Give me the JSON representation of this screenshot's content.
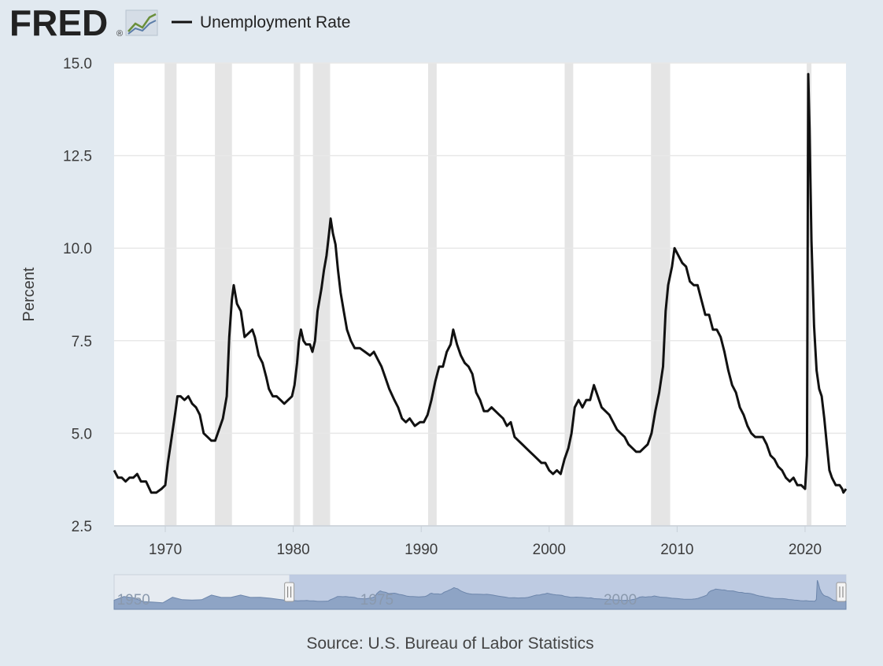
{
  "logo": {
    "text": "FRED",
    "registered": "®",
    "icon": "line-chart-icon"
  },
  "legend": {
    "label": "Unemployment Rate",
    "color": "#111111"
  },
  "source": "Source: U.S. Bureau of Labor Statistics",
  "colors": {
    "background": "#e1e9f0",
    "plot_background": "#ffffff",
    "recession_band": "#e5e5e5",
    "line": "#111111",
    "navigator_fill": "#8ea4c5",
    "navigator_mask": "#b6c6df"
  },
  "navigator": {
    "year_labels": [
      "1950",
      "1975",
      "2000"
    ],
    "year_values": [
      1950,
      1975,
      2000
    ],
    "x_range": [
      1948,
      2023.2
    ],
    "selected_range": [
      1966,
      2023.2
    ],
    "handle_icon": "drag-handle-icon",
    "overview_points": [
      [
        1948,
        4.0
      ],
      [
        1949,
        6.0
      ],
      [
        1950,
        5.3
      ],
      [
        1951,
        3.3
      ],
      [
        1952,
        3.0
      ],
      [
        1953,
        2.6
      ],
      [
        1954,
        5.6
      ],
      [
        1955,
        4.3
      ],
      [
        1956,
        4.1
      ],
      [
        1957,
        4.3
      ],
      [
        1958,
        6.8
      ],
      [
        1959,
        5.5
      ],
      [
        1960,
        5.5
      ],
      [
        1961,
        6.8
      ],
      [
        1962,
        5.5
      ],
      [
        1963,
        5.6
      ],
      [
        1964,
        5.1
      ],
      [
        1965,
        4.4
      ],
      [
        1966,
        3.8
      ]
    ]
  },
  "chart_data": {
    "type": "line",
    "title": "",
    "xlabel": "",
    "ylabel": "Percent",
    "xlim": [
      1966,
      2023.2
    ],
    "ylim": [
      2.5,
      15.0
    ],
    "x_ticks": [
      1970,
      1980,
      1990,
      2000,
      2010,
      2020
    ],
    "y_ticks": [
      2.5,
      5.0,
      7.5,
      10.0,
      12.5,
      15.0
    ],
    "y_tick_labels": [
      "2.5",
      "5.0",
      "7.5",
      "10.0",
      "12.5",
      "15.0"
    ],
    "grid": true,
    "legend_position": "top",
    "recessions": [
      [
        1969.95,
        1970.88
      ],
      [
        1973.88,
        1975.21
      ],
      [
        1980.04,
        1980.54
      ],
      [
        1981.54,
        1982.88
      ],
      [
        1990.54,
        1991.21
      ],
      [
        2001.21,
        2001.88
      ],
      [
        2007.96,
        2009.46
      ],
      [
        2020.13,
        2020.29
      ]
    ],
    "series": [
      {
        "name": "Unemployment Rate",
        "color": "#111111",
        "points": [
          [
            1966.0,
            4.0
          ],
          [
            1966.3,
            3.8
          ],
          [
            1966.6,
            3.8
          ],
          [
            1966.9,
            3.7
          ],
          [
            1967.2,
            3.8
          ],
          [
            1967.5,
            3.8
          ],
          [
            1967.8,
            3.9
          ],
          [
            1968.1,
            3.7
          ],
          [
            1968.5,
            3.7
          ],
          [
            1968.9,
            3.4
          ],
          [
            1969.3,
            3.4
          ],
          [
            1969.7,
            3.5
          ],
          [
            1970.0,
            3.6
          ],
          [
            1970.2,
            4.2
          ],
          [
            1970.5,
            4.9
          ],
          [
            1970.8,
            5.6
          ],
          [
            1970.95,
            6.0
          ],
          [
            1971.2,
            6.0
          ],
          [
            1971.5,
            5.9
          ],
          [
            1971.8,
            6.0
          ],
          [
            1972.1,
            5.8
          ],
          [
            1972.4,
            5.7
          ],
          [
            1972.7,
            5.5
          ],
          [
            1973.0,
            5.0
          ],
          [
            1973.3,
            4.9
          ],
          [
            1973.6,
            4.8
          ],
          [
            1973.9,
            4.8
          ],
          [
            1974.2,
            5.1
          ],
          [
            1974.5,
            5.4
          ],
          [
            1974.8,
            6.0
          ],
          [
            1975.0,
            7.6
          ],
          [
            1975.2,
            8.6
          ],
          [
            1975.35,
            9.0
          ],
          [
            1975.6,
            8.5
          ],
          [
            1975.9,
            8.3
          ],
          [
            1976.2,
            7.6
          ],
          [
            1976.5,
            7.7
          ],
          [
            1976.8,
            7.8
          ],
          [
            1977.0,
            7.6
          ],
          [
            1977.3,
            7.1
          ],
          [
            1977.6,
            6.9
          ],
          [
            1977.9,
            6.5
          ],
          [
            1978.1,
            6.2
          ],
          [
            1978.4,
            6.0
          ],
          [
            1978.7,
            6.0
          ],
          [
            1979.0,
            5.9
          ],
          [
            1979.3,
            5.8
          ],
          [
            1979.6,
            5.9
          ],
          [
            1979.9,
            6.0
          ],
          [
            1980.1,
            6.3
          ],
          [
            1980.3,
            6.9
          ],
          [
            1980.45,
            7.5
          ],
          [
            1980.6,
            7.8
          ],
          [
            1980.8,
            7.5
          ],
          [
            1981.0,
            7.4
          ],
          [
            1981.3,
            7.4
          ],
          [
            1981.5,
            7.2
          ],
          [
            1981.7,
            7.5
          ],
          [
            1981.9,
            8.3
          ],
          [
            1982.2,
            8.9
          ],
          [
            1982.4,
            9.4
          ],
          [
            1982.6,
            9.8
          ],
          [
            1982.8,
            10.4
          ],
          [
            1982.92,
            10.8
          ],
          [
            1983.1,
            10.4
          ],
          [
            1983.3,
            10.1
          ],
          [
            1983.5,
            9.4
          ],
          [
            1983.7,
            8.8
          ],
          [
            1983.95,
            8.3
          ],
          [
            1984.2,
            7.8
          ],
          [
            1984.5,
            7.5
          ],
          [
            1984.8,
            7.3
          ],
          [
            1985.2,
            7.3
          ],
          [
            1985.6,
            7.2
          ],
          [
            1986.0,
            7.1
          ],
          [
            1986.3,
            7.2
          ],
          [
            1986.6,
            7.0
          ],
          [
            1986.9,
            6.8
          ],
          [
            1987.2,
            6.5
          ],
          [
            1987.5,
            6.2
          ],
          [
            1987.9,
            5.9
          ],
          [
            1988.2,
            5.7
          ],
          [
            1988.5,
            5.4
          ],
          [
            1988.8,
            5.3
          ],
          [
            1989.1,
            5.4
          ],
          [
            1989.5,
            5.2
          ],
          [
            1989.9,
            5.3
          ],
          [
            1990.2,
            5.3
          ],
          [
            1990.5,
            5.5
          ],
          [
            1990.8,
            5.9
          ],
          [
            1991.1,
            6.4
          ],
          [
            1991.4,
            6.8
          ],
          [
            1991.7,
            6.8
          ],
          [
            1992.0,
            7.2
          ],
          [
            1992.3,
            7.4
          ],
          [
            1992.5,
            7.8
          ],
          [
            1992.8,
            7.4
          ],
          [
            1993.1,
            7.1
          ],
          [
            1993.4,
            6.9
          ],
          [
            1993.7,
            6.8
          ],
          [
            1994.0,
            6.6
          ],
          [
            1994.3,
            6.1
          ],
          [
            1994.6,
            5.9
          ],
          [
            1994.9,
            5.6
          ],
          [
            1995.2,
            5.6
          ],
          [
            1995.5,
            5.7
          ],
          [
            1995.8,
            5.6
          ],
          [
            1996.1,
            5.5
          ],
          [
            1996.4,
            5.4
          ],
          [
            1996.7,
            5.2
          ],
          [
            1997.0,
            5.3
          ],
          [
            1997.3,
            4.9
          ],
          [
            1997.6,
            4.8
          ],
          [
            1997.9,
            4.7
          ],
          [
            1998.2,
            4.6
          ],
          [
            1998.5,
            4.5
          ],
          [
            1998.8,
            4.4
          ],
          [
            1999.1,
            4.3
          ],
          [
            1999.4,
            4.2
          ],
          [
            1999.7,
            4.2
          ],
          [
            2000.0,
            4.0
          ],
          [
            2000.3,
            3.9
          ],
          [
            2000.6,
            4.0
          ],
          [
            2000.9,
            3.9
          ],
          [
            2001.2,
            4.3
          ],
          [
            2001.5,
            4.6
          ],
          [
            2001.75,
            5.0
          ],
          [
            2002.0,
            5.7
          ],
          [
            2002.3,
            5.9
          ],
          [
            2002.6,
            5.7
          ],
          [
            2002.9,
            5.9
          ],
          [
            2003.2,
            5.9
          ],
          [
            2003.5,
            6.3
          ],
          [
            2003.8,
            6.0
          ],
          [
            2004.1,
            5.7
          ],
          [
            2004.4,
            5.6
          ],
          [
            2004.7,
            5.5
          ],
          [
            2005.0,
            5.3
          ],
          [
            2005.3,
            5.1
          ],
          [
            2005.6,
            5.0
          ],
          [
            2005.9,
            4.9
          ],
          [
            2006.2,
            4.7
          ],
          [
            2006.5,
            4.6
          ],
          [
            2006.8,
            4.5
          ],
          [
            2007.1,
            4.5
          ],
          [
            2007.4,
            4.6
          ],
          [
            2007.7,
            4.7
          ],
          [
            2008.0,
            5.0
          ],
          [
            2008.3,
            5.6
          ],
          [
            2008.6,
            6.1
          ],
          [
            2008.9,
            6.8
          ],
          [
            2009.1,
            8.3
          ],
          [
            2009.3,
            9.0
          ],
          [
            2009.6,
            9.5
          ],
          [
            2009.8,
            10.0
          ],
          [
            2010.1,
            9.8
          ],
          [
            2010.4,
            9.6
          ],
          [
            2010.7,
            9.5
          ],
          [
            2011.0,
            9.1
          ],
          [
            2011.3,
            9.0
          ],
          [
            2011.6,
            9.0
          ],
          [
            2011.9,
            8.6
          ],
          [
            2012.2,
            8.2
          ],
          [
            2012.5,
            8.2
          ],
          [
            2012.8,
            7.8
          ],
          [
            2013.1,
            7.8
          ],
          [
            2013.4,
            7.6
          ],
          [
            2013.7,
            7.2
          ],
          [
            2014.0,
            6.7
          ],
          [
            2014.3,
            6.3
          ],
          [
            2014.6,
            6.1
          ],
          [
            2014.9,
            5.7
          ],
          [
            2015.2,
            5.5
          ],
          [
            2015.5,
            5.2
          ],
          [
            2015.8,
            5.0
          ],
          [
            2016.1,
            4.9
          ],
          [
            2016.4,
            4.9
          ],
          [
            2016.7,
            4.9
          ],
          [
            2017.0,
            4.7
          ],
          [
            2017.3,
            4.4
          ],
          [
            2017.6,
            4.3
          ],
          [
            2017.9,
            4.1
          ],
          [
            2018.2,
            4.0
          ],
          [
            2018.5,
            3.8
          ],
          [
            2018.8,
            3.7
          ],
          [
            2019.1,
            3.8
          ],
          [
            2019.4,
            3.6
          ],
          [
            2019.7,
            3.6
          ],
          [
            2020.0,
            3.5
          ],
          [
            2020.15,
            4.4
          ],
          [
            2020.25,
            14.7
          ],
          [
            2020.35,
            13.2
          ],
          [
            2020.5,
            10.2
          ],
          [
            2020.7,
            7.9
          ],
          [
            2020.9,
            6.7
          ],
          [
            2021.1,
            6.2
          ],
          [
            2021.3,
            6.0
          ],
          [
            2021.5,
            5.4
          ],
          [
            2021.7,
            4.7
          ],
          [
            2021.9,
            4.0
          ],
          [
            2022.1,
            3.8
          ],
          [
            2022.4,
            3.6
          ],
          [
            2022.7,
            3.6
          ],
          [
            2022.9,
            3.5
          ],
          [
            2023.0,
            3.4
          ],
          [
            2023.2,
            3.5
          ]
        ]
      }
    ]
  }
}
